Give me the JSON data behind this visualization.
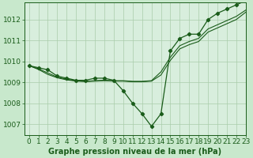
{
  "background_color": "#c8e8cc",
  "plot_bg_color": "#d8eedd",
  "grid_color": "#aaccaa",
  "line_color": "#1a5c1a",
  "xlabel": "Graphe pression niveau de la mer (hPa)",
  "ylim": [
    1006.5,
    1012.8
  ],
  "xlim": [
    -0.5,
    23
  ],
  "yticks": [
    1007,
    1008,
    1009,
    1010,
    1011,
    1012
  ],
  "xticks": [
    0,
    1,
    2,
    3,
    4,
    5,
    6,
    7,
    8,
    9,
    10,
    11,
    12,
    13,
    14,
    15,
    16,
    17,
    18,
    19,
    20,
    21,
    22,
    23
  ],
  "xtick_labels": [
    "0",
    "1",
    "2",
    "3",
    "4",
    "5",
    "6",
    "7",
    "8",
    "9",
    "10",
    "11",
    "12",
    "13",
    "14",
    "15",
    "16",
    "17",
    "18",
    "19",
    "20",
    "21",
    "22",
    "23"
  ],
  "series_marker": [
    1009.8,
    1009.7,
    1009.6,
    1009.3,
    1009.2,
    1009.1,
    1009.1,
    1009.2,
    1009.2,
    1009.1,
    1008.6,
    1008.0,
    1007.5,
    1006.9,
    1007.5,
    1010.5,
    1011.1,
    1011.3,
    1011.3,
    1012.0,
    1012.3,
    1012.5,
    1012.7,
    1012.9
  ],
  "series_line1": [
    1009.8,
    1009.65,
    1009.45,
    1009.25,
    1009.15,
    1009.08,
    1009.05,
    1009.08,
    1009.1,
    1009.08,
    1009.08,
    1009.05,
    1009.05,
    1009.08,
    1009.5,
    1010.2,
    1010.75,
    1010.95,
    1011.1,
    1011.55,
    1011.75,
    1011.95,
    1012.15,
    1012.45
  ],
  "series_line2": [
    1009.8,
    1009.62,
    1009.38,
    1009.22,
    1009.12,
    1009.06,
    1009.04,
    1009.06,
    1009.08,
    1009.06,
    1009.06,
    1009.03,
    1009.03,
    1009.06,
    1009.35,
    1010.05,
    1010.6,
    1010.8,
    1010.95,
    1011.4,
    1011.6,
    1011.8,
    1012.0,
    1012.35
  ],
  "xlabel_fontsize": 7,
  "tick_fontsize": 6.5
}
